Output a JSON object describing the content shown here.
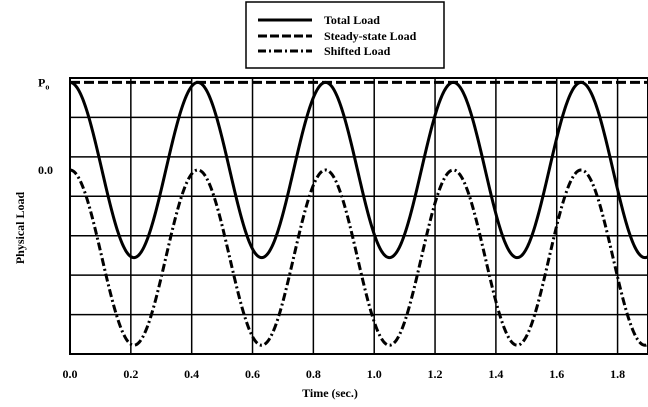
{
  "chart_data": {
    "type": "line",
    "title": "",
    "xlabel": "Time (sec.)",
    "ylabel": "Physical Load",
    "xlim": [
      0.0,
      1.9
    ],
    "ylim": [
      -2.1,
      1.05
    ],
    "x_ticks": [
      0.0,
      0.2,
      0.4,
      0.6,
      0.8,
      1.0,
      1.2,
      1.4,
      1.6,
      1.8
    ],
    "x_tick_labels": [
      "0.0",
      "0.2",
      "0.4",
      "0.6",
      "0.8",
      "1.0",
      "1.2",
      "1.4",
      "1.6",
      "1.8"
    ],
    "y_tick_labels": [
      {
        "value": 1.0,
        "text": "P",
        "sub": "o"
      },
      {
        "value": 0.0,
        "text": "0.0",
        "sub": ""
      }
    ],
    "grid": true,
    "legend_position": "top-center",
    "series": [
      {
        "name": "Total Load",
        "style": "solid",
        "period": 0.42,
        "offset": 0.0,
        "amplitude": 1.0,
        "x_end": 1.9
      },
      {
        "name": "Steady-state Load",
        "style": "dashed",
        "constant": 1.0,
        "x_end": 1.9
      },
      {
        "name": "Shifted Load",
        "style": "dashdot",
        "period": 0.42,
        "offset": -1.0,
        "amplitude": 1.0,
        "x_end": 1.9
      }
    ]
  }
}
